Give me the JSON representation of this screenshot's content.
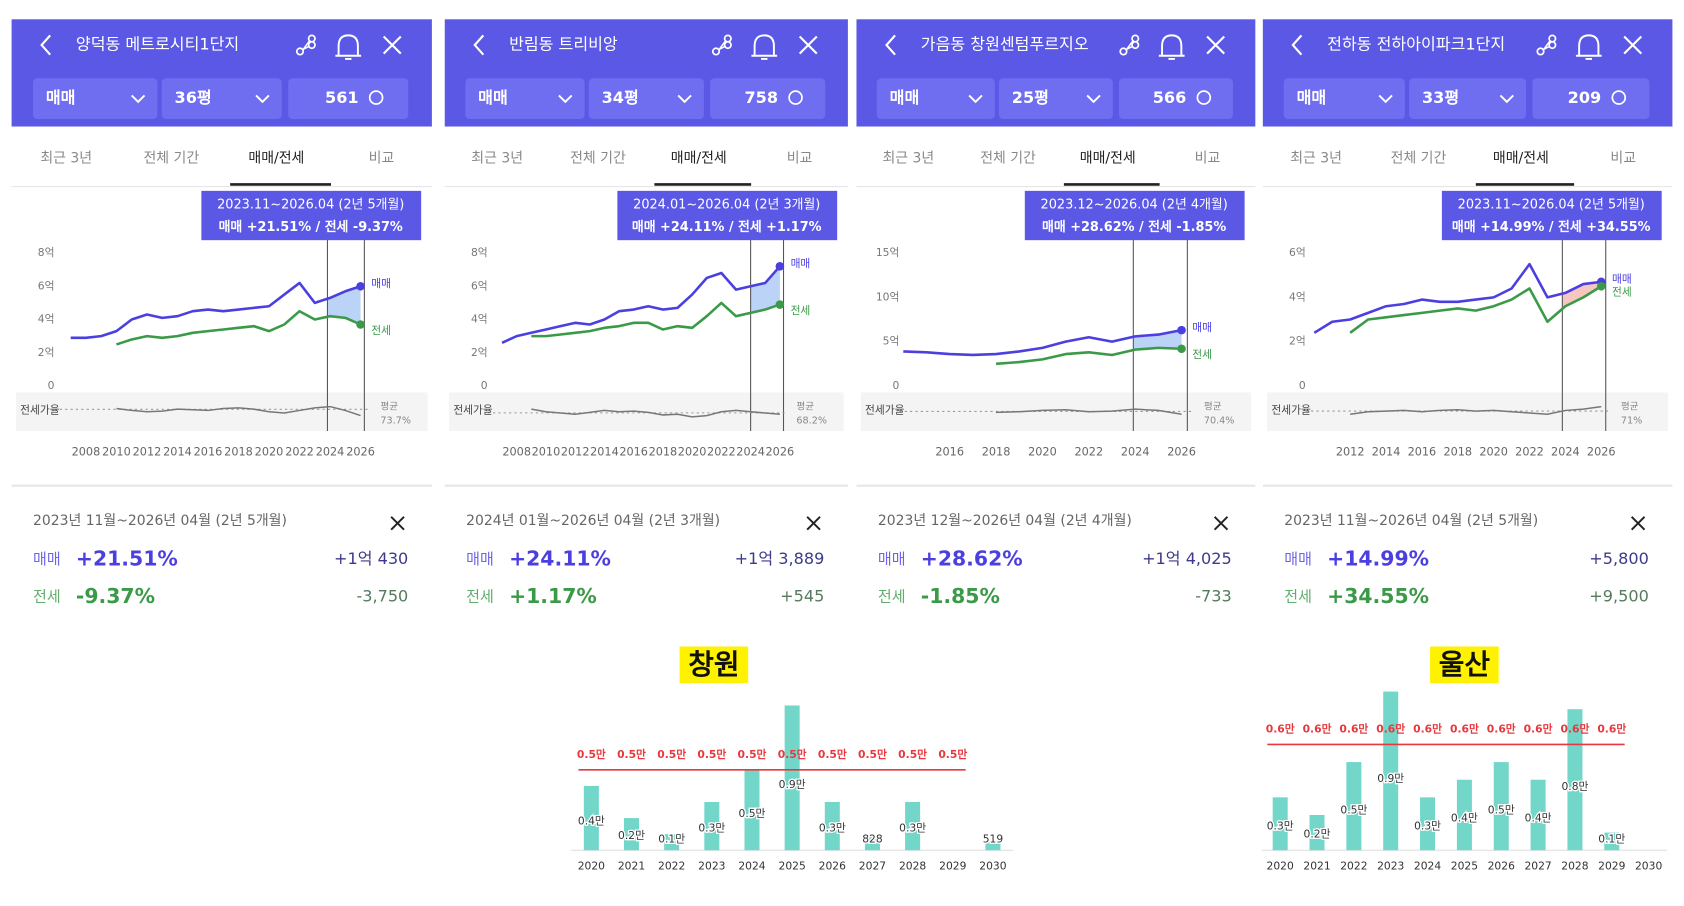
{
  "panels": [
    {
      "title": "양덕동 메트로시티1단지",
      "trade": "매매",
      "size": "36평",
      "count": "561",
      "tabs": [
        "최근 3년",
        "전체 기간",
        "매매/전세",
        "비교"
      ],
      "tooltip": {
        "period": "2023.11~2026.04 (2년 5개월)",
        "summary": "매매 +21.51%  /  전세 -9.37%"
      },
      "summary": {
        "period": "2023년 11월~2026년 04월 (2년 5개월)",
        "rows": [
          {
            "label": "매매",
            "pct": "+21.51%",
            "amount": "+1억 430"
          },
          {
            "label": "전세",
            "pct": "-9.37%",
            "amount": "-3,750"
          }
        ]
      }
    },
    {
      "title": "반림동 트리비앙",
      "trade": "매매",
      "size": "34평",
      "count": "758",
      "tabs": [
        "최근 3년",
        "전체 기간",
        "매매/전세",
        "비교"
      ],
      "tooltip": {
        "period": "2024.01~2026.04 (2년 3개월)",
        "summary": "매매 +24.11%  /  전세 +1.17%"
      },
      "summary": {
        "period": "2024년 01월~2026년 04월 (2년 3개월)",
        "rows": [
          {
            "label": "매매",
            "pct": "+24.11%",
            "amount": "+1억 3,889"
          },
          {
            "label": "전세",
            "pct": "+1.17%",
            "amount": "+545"
          }
        ]
      }
    },
    {
      "title": "가음동 창원센텀푸르지오",
      "trade": "매매",
      "size": "25평",
      "count": "566",
      "tabs": [
        "최근 3년",
        "전체 기간",
        "매매/전세",
        "비교"
      ],
      "tooltip": {
        "period": "2023.12~2026.04 (2년 4개월)",
        "summary": "매매 +28.62%  /  전세 -1.85%"
      },
      "summary": {
        "period": "2023년 12월~2026년 04월 (2년 4개월)",
        "rows": [
          {
            "label": "매매",
            "pct": "+28.62%",
            "amount": "+1억 4,025"
          },
          {
            "label": "전세",
            "pct": "-1.85%",
            "amount": "-733"
          }
        ]
      }
    },
    {
      "title": "전하동 전하아이파크1단지",
      "trade": "매매",
      "size": "33평",
      "count": "209",
      "tabs": [
        "최근 3년",
        "전체 기간",
        "매매/전세",
        "비교"
      ],
      "tooltip": {
        "period": "2023.11~2026.04 (2년 5개월)",
        "summary": "매매 +14.99%  /  전세 +34.55%"
      },
      "summary": {
        "period": "2023년 11월~2026년 04월 (2년 5개월)",
        "rows": [
          {
            "label": "매매",
            "pct": "+14.99%",
            "amount": "+5,800"
          },
          {
            "label": "전세",
            "pct": "+34.55%",
            "amount": "+9,500"
          }
        ]
      }
    }
  ],
  "chart_data": [
    {
      "type": "line",
      "xlim": [
        2006.5,
        2026.6
      ],
      "xticks": [
        2008,
        2010,
        2012,
        2014,
        2016,
        2018,
        2020,
        2022,
        2024,
        2026
      ],
      "ylim": [
        0,
        8
      ],
      "yticks": [
        0,
        {
          "value": 2,
          "label": "2억"
        },
        {
          "value": 4,
          "label": "4억"
        },
        {
          "value": 6,
          "label": "6억"
        },
        {
          "value": 8,
          "label": "8억"
        }
      ],
      "x": [
        2007,
        2008,
        2009,
        2010,
        2011,
        2012,
        2013,
        2014,
        2015,
        2016,
        2017,
        2018,
        2019,
        2020,
        2021,
        2022,
        2023,
        2024,
        2025,
        2026
      ],
      "series": [
        {
          "name": "매매",
          "color": "#4b3fe0",
          "values": [
            2.9,
            2.9,
            3.0,
            3.3,
            4.0,
            4.3,
            4.1,
            4.2,
            4.5,
            4.6,
            4.5,
            4.6,
            4.7,
            4.8,
            5.5,
            6.2,
            5.0,
            5.3,
            5.7,
            6.0
          ]
        },
        {
          "name": "전세",
          "color": "#3a9a48",
          "values": [
            null,
            null,
            null,
            2.5,
            2.8,
            3.0,
            2.9,
            3.0,
            3.2,
            3.3,
            3.4,
            3.5,
            3.6,
            3.3,
            3.7,
            4.5,
            4.0,
            4.2,
            4.1,
            3.7
          ]
        }
      ],
      "ratio": {
        "name": "전세가율",
        "lim": [
          40,
          100
        ],
        "values": [
          null,
          null,
          null,
          75,
          72,
          70,
          71,
          74,
          73,
          72,
          75,
          76,
          74,
          70,
          68,
          72,
          76,
          78,
          72,
          64
        ],
        "avg_name": "평균",
        "avg": {
          "value": 73.7,
          "label": "73.7%"
        }
      },
      "marker_x": [
        2023.83,
        2026.25
      ],
      "fill_color": "#a9c8f5"
    },
    {
      "type": "line",
      "xlim": [
        2006.6,
        2026.4
      ],
      "xticks": [
        2008,
        2010,
        2012,
        2014,
        2016,
        2018,
        2020,
        2022,
        2024,
        2026
      ],
      "ylim": [
        0,
        8
      ],
      "yticks": [
        0,
        {
          "value": 2,
          "label": "2억"
        },
        {
          "value": 4,
          "label": "4억"
        },
        {
          "value": 6,
          "label": "6억"
        },
        {
          "value": 8,
          "label": "8억"
        }
      ],
      "x": [
        2007,
        2008,
        2009,
        2010,
        2011,
        2012,
        2013,
        2014,
        2015,
        2016,
        2017,
        2018,
        2019,
        2020,
        2021,
        2022,
        2023,
        2024,
        2025,
        2026
      ],
      "series": [
        {
          "name": "매매",
          "color": "#4b3fe0",
          "values": [
            2.6,
            3.0,
            3.2,
            3.4,
            3.6,
            3.8,
            3.7,
            4.0,
            4.5,
            4.6,
            4.8,
            4.6,
            4.7,
            5.5,
            6.5,
            6.8,
            5.8,
            6.0,
            6.2,
            7.2
          ]
        },
        {
          "name": "전세",
          "color": "#3a9a48",
          "values": [
            null,
            null,
            3.0,
            3.0,
            3.1,
            3.2,
            3.3,
            3.5,
            3.6,
            3.8,
            3.8,
            3.4,
            3.6,
            3.5,
            4.2,
            5.0,
            4.2,
            4.4,
            4.6,
            4.9
          ]
        }
      ],
      "ratio": {
        "name": "전세가율",
        "lim": [
          40,
          100
        ],
        "values": [
          null,
          null,
          74,
          70,
          68,
          66,
          69,
          72,
          70,
          71,
          69,
          65,
          66,
          62,
          64,
          70,
          72,
          70,
          68,
          66
        ],
        "avg_name": "평균",
        "avg": {
          "value": 68.2,
          "label": "68.2%"
        }
      },
      "marker_x": [
        2024.0,
        2026.25
      ],
      "fill_color": "#a9c8f5"
    },
    {
      "type": "line",
      "xlim": [
        2014.2,
        2026.5
      ],
      "xticks": [
        2016,
        2018,
        2020,
        2022,
        2024,
        2026
      ],
      "ylim": [
        0,
        15
      ],
      "yticks": [
        0,
        {
          "value": 5,
          "label": "5억"
        },
        {
          "value": 10,
          "label": "10억"
        },
        {
          "value": 15,
          "label": "15억"
        }
      ],
      "x": [
        2014,
        2015,
        2016,
        2017,
        2018,
        2019,
        2020,
        2021,
        2022,
        2023,
        2024,
        2025,
        2026
      ],
      "series": [
        {
          "name": "매매",
          "color": "#4b3fe0",
          "values": [
            3.9,
            3.8,
            3.6,
            3.5,
            3.6,
            3.9,
            4.3,
            5.0,
            5.5,
            5.0,
            5.6,
            5.8,
            6.3
          ]
        },
        {
          "name": "전세",
          "color": "#3a9a48",
          "values": [
            null,
            null,
            null,
            null,
            2.5,
            2.7,
            3.0,
            3.6,
            3.8,
            3.5,
            4.1,
            4.3,
            4.2
          ]
        }
      ],
      "ratio": {
        "name": "전세가율",
        "lim": [
          40,
          100
        ],
        "values": [
          null,
          null,
          null,
          null,
          69,
          70,
          72,
          73,
          70,
          71,
          74,
          72,
          66
        ],
        "avg_name": "평균",
        "avg": {
          "value": 70.4,
          "label": "70.4%"
        }
      },
      "marker_x": [
        2023.92,
        2026.25
      ],
      "fill_color": "#a9c8f5"
    },
    {
      "type": "line",
      "xlim": [
        2010.0,
        2026.5
      ],
      "xticks": [
        2012,
        2014,
        2016,
        2018,
        2020,
        2022,
        2024,
        2026
      ],
      "ylim": [
        0,
        6
      ],
      "yticks": [
        0,
        {
          "value": 2,
          "label": "2억"
        },
        {
          "value": 4,
          "label": "4억"
        },
        {
          "value": 6,
          "label": "6억"
        }
      ],
      "x": [
        2010,
        2011,
        2012,
        2013,
        2014,
        2015,
        2016,
        2017,
        2018,
        2019,
        2020,
        2021,
        2022,
        2023,
        2024,
        2025,
        2026
      ],
      "series": [
        {
          "name": "매매",
          "color": "#4b3fe0",
          "values": [
            2.4,
            2.9,
            3.0,
            3.3,
            3.6,
            3.7,
            3.9,
            3.8,
            3.8,
            3.9,
            4.0,
            4.4,
            5.5,
            4.0,
            4.2,
            4.6,
            4.7
          ]
        },
        {
          "name": "전세",
          "color": "#3a9a48",
          "values": [
            null,
            null,
            2.4,
            3.0,
            3.1,
            3.2,
            3.3,
            3.4,
            3.5,
            3.4,
            3.6,
            3.9,
            4.4,
            2.9,
            3.6,
            4.0,
            4.5
          ]
        }
      ],
      "ratio": {
        "name": "전세가율",
        "lim": [
          40,
          100
        ],
        "values": [
          null,
          null,
          66,
          70,
          71,
          72,
          70,
          72,
          73,
          71,
          72,
          70,
          68,
          66,
          72,
          74,
          78
        ],
        "avg_name": "평균",
        "avg": {
          "value": 71,
          "label": "71%"
        }
      },
      "marker_x": [
        2023.83,
        2026.25
      ],
      "fill_color": "#f4b8b0"
    },
    {
      "type": "bar",
      "title": "창원",
      "categories": [
        "2020",
        "2021",
        "2022",
        "2023",
        "2024",
        "2025",
        "2026",
        "2027",
        "2028",
        "2029",
        "2030"
      ],
      "values": [
        4000,
        2000,
        1000,
        3000,
        5000,
        9000,
        3000,
        828,
        3000,
        null,
        519
      ],
      "value_labels": [
        "0.4만",
        "0.2만",
        "0.1만",
        "0.3만",
        "0.5만",
        "0.9만",
        "0.3만",
        "828",
        "0.3만",
        null,
        "519"
      ],
      "color": "#72d6c9",
      "ylim": [
        0,
        9000
      ],
      "reference": {
        "color": "#e8383d",
        "values": [
          5000,
          5000,
          5000,
          5000,
          5000,
          5000,
          5000,
          5000,
          5000,
          5000
        ],
        "labels": [
          "0.5만",
          "0.5만",
          "0.5만",
          "0.5만",
          "0.5만",
          "0.5만",
          "0.5만",
          "0.5만",
          "0.5만",
          "0.5만"
        ]
      }
    },
    {
      "type": "bar",
      "title": "울산",
      "categories": [
        "2020",
        "2021",
        "2022",
        "2023",
        "2024",
        "2025",
        "2026",
        "2027",
        "2028",
        "2029",
        "2030"
      ],
      "values": [
        3000,
        2000,
        5000,
        9000,
        3000,
        4000,
        5000,
        4000,
        8000,
        1000,
        null
      ],
      "value_labels": [
        "0.3만",
        "0.2만",
        "0.5만",
        "0.9만",
        "0.3만",
        "0.4만",
        "0.5만",
        "0.4만",
        "0.8만",
        "0.1만",
        null
      ],
      "color": "#72d6c9",
      "ylim": [
        0,
        9000
      ],
      "reference": {
        "color": "#e8383d",
        "values": [
          6000,
          6000,
          6000,
          6000,
          6000,
          6000,
          6000,
          6000,
          6000,
          6000
        ],
        "labels": [
          "0.6만",
          "0.6만",
          "0.6만",
          "0.6만",
          "0.6만",
          "0.6만",
          "0.6만",
          "0.6만",
          "0.6만",
          "0.6만"
        ]
      }
    }
  ]
}
